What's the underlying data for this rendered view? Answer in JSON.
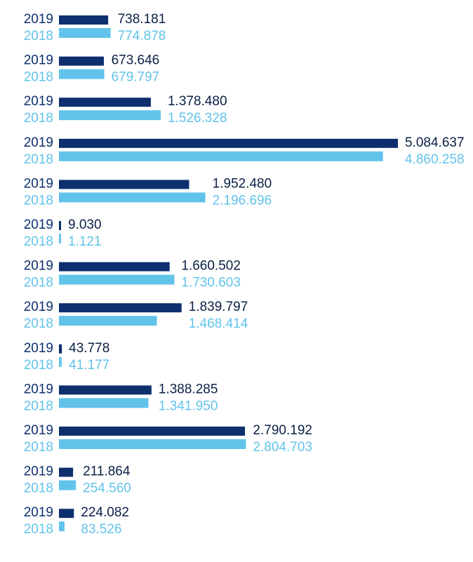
{
  "chart_data": {
    "type": "bar",
    "orientation": "horizontal",
    "categories": [
      null,
      null,
      null,
      null,
      null,
      null,
      null,
      null,
      null,
      null,
      null,
      null,
      null
    ],
    "series": [
      {
        "name": "2019",
        "color": "#0d2f6e",
        "values": [
          738181,
          673646,
          1378480,
          5084637,
          1952480,
          9030,
          1660502,
          1839797,
          43778,
          1388285,
          2790192,
          211864,
          224082
        ],
        "value_labels": [
          "738.181",
          "673.646",
          "1.378.480",
          "5.084.637",
          "1.952.480",
          "9.030",
          "1.660.502",
          "1.839.797",
          "43.778",
          "1.388.285",
          "2.790.192",
          "211.864",
          "224.082"
        ]
      },
      {
        "name": "2018",
        "color": "#62c3ea",
        "values": [
          774878,
          679797,
          1526328,
          4860258,
          2196696,
          1121,
          1730603,
          1468414,
          41177,
          1341950,
          2804703,
          254560,
          83526
        ],
        "value_labels": [
          "774.878",
          "679.797",
          "1.526.328",
          "4.860.258",
          "2.196.696",
          "1.121",
          "1.730.603",
          "1.468.414",
          "41.177",
          "1.341.950",
          "2.804.703",
          "254.560",
          "83.526"
        ]
      }
    ]
  }
}
